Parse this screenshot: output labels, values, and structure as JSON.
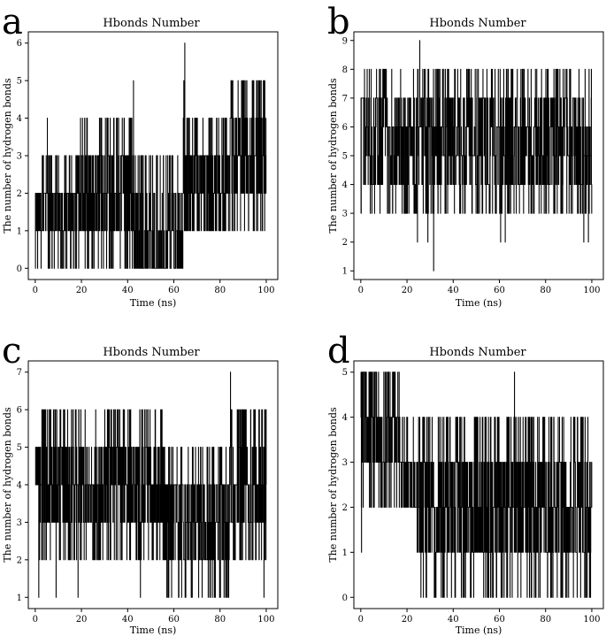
{
  "chart_data": [
    {
      "panel": "a",
      "type": "line",
      "title": "Hbonds Number",
      "xlabel": "Time (ns)",
      "ylabel": "The number of hydrogen bonds",
      "xlim": [
        -3,
        105
      ],
      "ylim": [
        -0.3,
        6.3
      ],
      "xticks": [
        "0",
        "20",
        "40",
        "60",
        "80",
        "100"
      ],
      "yticks": [
        "0",
        "1",
        "2",
        "3",
        "4",
        "5",
        "6"
      ],
      "series": [
        {
          "name": "Hbonds",
          "segments": [
            {
              "x0": 0,
              "x1": 18,
              "lo": 1,
              "hi": 2,
              "splo": 0,
              "sphi": 3,
              "fluct": 0.35,
              "spike": 0.4
            },
            {
              "x0": 18,
              "x1": 42,
              "lo": 1,
              "hi": 3,
              "splo": 0,
              "sphi": 4,
              "fluct": 0.35,
              "spike": 0.35
            },
            {
              "x0": 42,
              "x1": 64,
              "lo": 0,
              "hi": 1,
              "splo": 0,
              "sphi": 3,
              "fluct": 0.3,
              "spike": 0.35
            },
            {
              "x0": 64,
              "x1": 84,
              "lo": 1,
              "hi": 3,
              "splo": 1,
              "sphi": 4,
              "fluct": 0.3,
              "spike": 0.45
            },
            {
              "x0": 84,
              "x1": 100,
              "lo": 2,
              "hi": 4,
              "splo": 1,
              "sphi": 5,
              "fluct": 0.3,
              "spike": 0.55
            }
          ],
          "peaks": [
            {
              "x": 42.5,
              "y": 5
            },
            {
              "x": 64.7,
              "y": 6
            },
            {
              "x": 64.3,
              "y": 5
            },
            {
              "x": 5.2,
              "y": 4
            },
            {
              "x": 31.0,
              "y": 4
            }
          ]
        }
      ]
    },
    {
      "panel": "b",
      "type": "line",
      "title": "Hbonds Number",
      "xlabel": "Time (ns)",
      "ylabel": "The number of hydrogen bonds",
      "xlim": [
        -3,
        105
      ],
      "ylim": [
        0.7,
        9.3
      ],
      "xticks": [
        "0",
        "20",
        "40",
        "60",
        "80",
        "100"
      ],
      "yticks": [
        "1",
        "2",
        "3",
        "4",
        "5",
        "6",
        "7",
        "8",
        "9"
      ],
      "series": [
        {
          "name": "Hbonds",
          "segments": [
            {
              "x0": 0,
              "x1": 100,
              "lo": 4,
              "hi": 7,
              "splo": 3,
              "sphi": 8,
              "fluct": 0.18,
              "spike": 0.45
            }
          ],
          "peaks": [
            {
              "x": 25.5,
              "y": 9
            },
            {
              "x": 31.5,
              "y": 1
            },
            {
              "x": 24.5,
              "y": 2
            },
            {
              "x": 29.0,
              "y": 2
            },
            {
              "x": 60.5,
              "y": 2
            },
            {
              "x": 62.5,
              "y": 2
            },
            {
              "x": 96.5,
              "y": 2
            },
            {
              "x": 98.5,
              "y": 2
            }
          ]
        }
      ]
    },
    {
      "panel": "c",
      "type": "line",
      "title": "Hbonds Number",
      "xlabel": "Time (ns)",
      "ylabel": "The number of hydrogen bonds",
      "xlim": [
        -3,
        105
      ],
      "ylim": [
        0.7,
        7.3
      ],
      "xticks": [
        "0",
        "20",
        "40",
        "60",
        "80",
        "100"
      ],
      "yticks": [
        "1",
        "2",
        "3",
        "4",
        "5",
        "6",
        "7"
      ],
      "series": [
        {
          "name": "Hbonds",
          "segments": [
            {
              "x0": 0,
              "x1": 56,
              "lo": 3,
              "hi": 5,
              "splo": 2,
              "sphi": 6,
              "fluct": 0.3,
              "spike": 0.45
            },
            {
              "x0": 56,
              "x1": 84,
              "lo": 2,
              "hi": 4,
              "splo": 1,
              "sphi": 5,
              "fluct": 0.35,
              "spike": 0.4
            },
            {
              "x0": 84,
              "x1": 100,
              "lo": 3,
              "hi": 5,
              "splo": 2,
              "sphi": 6,
              "fluct": 0.3,
              "spike": 0.55
            }
          ],
          "peaks": [
            {
              "x": 84.5,
              "y": 7
            },
            {
              "x": 1.5,
              "y": 1
            },
            {
              "x": 9.0,
              "y": 1
            },
            {
              "x": 18.5,
              "y": 1
            },
            {
              "x": 45.5,
              "y": 1
            },
            {
              "x": 99.0,
              "y": 1
            }
          ]
        }
      ]
    },
    {
      "panel": "d",
      "type": "line",
      "title": "Hbonds Number",
      "xlabel": "Time (ns)",
      "ylabel": "The number of hydrogen bonds",
      "xlim": [
        -3,
        105
      ],
      "ylim": [
        -0.25,
        5.25
      ],
      "xticks": [
        "0",
        "20",
        "40",
        "60",
        "80",
        "100"
      ],
      "yticks": [
        "0",
        "1",
        "2",
        "3",
        "4",
        "5"
      ],
      "series": [
        {
          "name": "Hbonds",
          "segments": [
            {
              "x0": 0,
              "x1": 7,
              "lo": 3,
              "hi": 5,
              "splo": 2,
              "sphi": 5,
              "fluct": 0.3,
              "spike": 0.5
            },
            {
              "x0": 7,
              "x1": 17,
              "lo": 3,
              "hi": 4,
              "splo": 2,
              "sphi": 5,
              "fluct": 0.3,
              "spike": 0.5
            },
            {
              "x0": 17,
              "x1": 24,
              "lo": 2,
              "hi": 3,
              "splo": 2,
              "sphi": 4,
              "fluct": 0.3,
              "spike": 0.3
            },
            {
              "x0": 24,
              "x1": 100,
              "lo": 1,
              "hi": 3,
              "splo": 0,
              "sphi": 4,
              "fluct": 0.35,
              "spike": 0.45
            }
          ],
          "peaks": [
            {
              "x": 66.5,
              "y": 5
            },
            {
              "x": 0.3,
              "y": 1
            }
          ]
        }
      ]
    }
  ]
}
